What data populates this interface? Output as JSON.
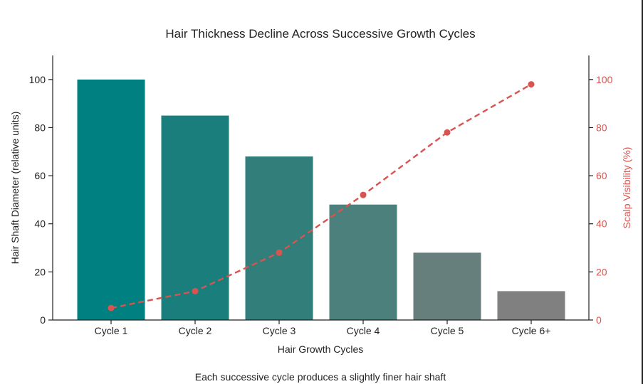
{
  "chart_data": {
    "type": "bar",
    "title": "Hair Thickness Decline Across Successive Growth Cycles",
    "subtitle": "Each successive cycle produces a slightly finer hair shaft",
    "xlabel": "Hair Growth Cycles",
    "ylabel": "Hair Shaft Diameter (relative units)",
    "y2label": "Scalp Visibility (%)",
    "categories": [
      "Cycle 1",
      "Cycle 2",
      "Cycle 3",
      "Cycle 4",
      "Cycle 5",
      "Cycle 6+"
    ],
    "ylim": [
      0,
      110
    ],
    "y2lim": [
      0,
      110
    ],
    "yticks": [
      0,
      20,
      40,
      60,
      80,
      100
    ],
    "y2ticks": [
      0,
      20,
      40,
      60,
      80,
      100
    ],
    "grid": false,
    "series": [
      {
        "type": "bar",
        "axis": "left",
        "values": [
          100,
          85,
          68,
          48,
          28,
          12
        ],
        "colors": [
          "#008080",
          "#1a7f7c",
          "#327e7b",
          "#4c807d",
          "#667f7c",
          "#808080"
        ]
      },
      {
        "type": "line",
        "axis": "right",
        "style": "dashed",
        "marker": "circle",
        "color": "#d9534f",
        "values": [
          5,
          12,
          28,
          52,
          78,
          98
        ]
      }
    ]
  }
}
